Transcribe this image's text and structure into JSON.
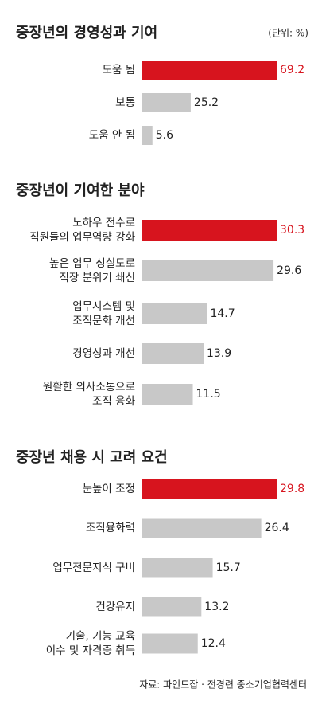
{
  "chart_data": [
    {
      "type": "bar",
      "orientation": "horizontal",
      "title": "중장년의 경영성과 기여",
      "unit": "(단위: %)",
      "categories": [
        "도움 됨",
        "보통",
        "도움 안 됨"
      ],
      "values": [
        69.2,
        25.2,
        5.6
      ],
      "colors": [
        "#d7141e",
        "#c8c8c8",
        "#c8c8c8"
      ],
      "label_colors": [
        "#d7141e",
        "#222222",
        "#222222"
      ],
      "xlim": [
        0,
        69.2
      ]
    },
    {
      "type": "bar",
      "orientation": "horizontal",
      "title": "중장년이 기여한 분야",
      "categories": [
        "노하우 전수로\n직원들의 업무역량 강화",
        "높은 업무 성실도로\n직장 분위기 쇄신",
        "업무시스템 및\n조직문화 개선",
        "경영성과 개선",
        "원활한 의사소통으로\n조직 융화"
      ],
      "values": [
        30.3,
        29.6,
        14.7,
        13.9,
        11.5
      ],
      "colors": [
        "#d7141e",
        "#c8c8c8",
        "#c8c8c8",
        "#c8c8c8",
        "#c8c8c8"
      ],
      "label_colors": [
        "#d7141e",
        "#222222",
        "#222222",
        "#222222",
        "#222222"
      ],
      "xlim": [
        0,
        30.3
      ]
    },
    {
      "type": "bar",
      "orientation": "horizontal",
      "title": "중장년 채용 시 고려 요건",
      "categories": [
        "눈높이 조정",
        "조직융화력",
        "업무전문지식 구비",
        "건강유지",
        "기술, 기능 교육\n이수 및 자격증 취득"
      ],
      "values": [
        29.8,
        26.4,
        15.7,
        13.2,
        12.4
      ],
      "colors": [
        "#d7141e",
        "#c8c8c8",
        "#c8c8c8",
        "#c8c8c8",
        "#c8c8c8"
      ],
      "label_colors": [
        "#d7141e",
        "#222222",
        "#222222",
        "#222222",
        "#222222"
      ],
      "xlim": [
        0,
        29.8
      ]
    }
  ],
  "source": "자료: 파인드잡 · 전경련 중소기업협력센터"
}
